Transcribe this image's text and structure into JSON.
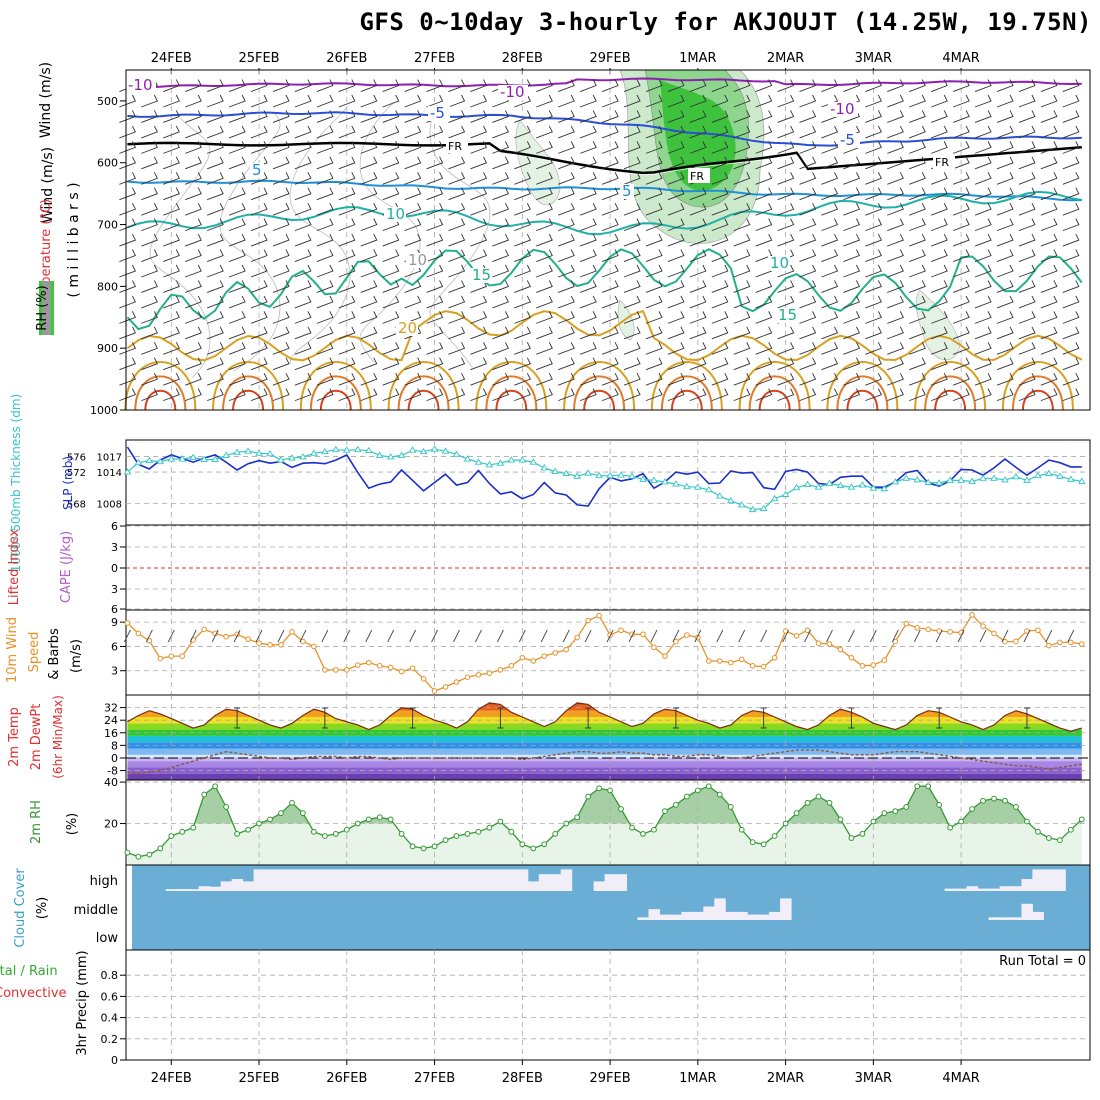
{
  "title": "GFS 0~10day 3-hourly for AKJOUJT (14.25W, 19.75N)",
  "dates": [
    "24FEB",
    "25FEB",
    "26FEB",
    "27FEB",
    "28FEB",
    "29FEB",
    "1MAR",
    "2MAR",
    "3MAR",
    "4MAR"
  ],
  "colors": {
    "rh_fill": "#33cc33",
    "thickness": "#33c6c6",
    "slp": "#1a2fcc",
    "wind": "#e8922a",
    "cloud": "#6aaed6",
    "rh2m": "#339933",
    "label_red": "#e03030",
    "label_green": "#33aa33",
    "label_violet": "#b060c8"
  },
  "chart_data": [
    {
      "type": "contour",
      "name": "upper-air",
      "ylabel_parts": [
        "RH (%)",
        "Temperature (°C)",
        "Wind (m/s)",
        "( m i l l i b a r s )"
      ],
      "yticks": [
        500,
        600,
        700,
        800,
        900,
        1000
      ],
      "ylim": [
        1000,
        450
      ],
      "contour_labels": [
        {
          "text": "-10",
          "color": "#8e1fb0"
        },
        {
          "text": "-10",
          "color": "#8e1fb0"
        },
        {
          "text": "-10",
          "color": "#8e1fb0"
        },
        {
          "text": "-5",
          "color": "#2a4fd6"
        },
        {
          "text": "-5",
          "color": "#2a4fd6"
        },
        {
          "text": "FR",
          "color": "#000000"
        },
        {
          "text": "FR",
          "color": "#000000"
        },
        {
          "text": "FR",
          "color": "#000000"
        },
        {
          "text": "5",
          "color": "#1e90d6"
        },
        {
          "text": "5",
          "color": "#1e90d6"
        },
        {
          "text": "10",
          "color": "#1fb0a8"
        },
        {
          "text": "10",
          "color": "#1fb0a8"
        },
        {
          "text": "10",
          "color": "#999999"
        },
        {
          "text": "15",
          "color": "#22b08a"
        },
        {
          "text": "15",
          "color": "#22b08a"
        },
        {
          "text": "20",
          "color": "#d9a020"
        }
      ]
    },
    {
      "type": "line",
      "name": "thickness-slp",
      "ylabel_left": "1000~500mb Thickness (dm)",
      "ylabel_right": "SLP (mb)",
      "yticks_left": [
        576,
        572,
        568
      ],
      "yticks_right": [
        1017,
        1014,
        1008
      ],
      "ylim_right": [
        1005,
        1019
      ],
      "series": [
        {
          "name": "SLP (mb)",
          "values": [
            1018.8,
            1015.5,
            1014.6,
            1016.3,
            1017.3,
            1016.6,
            1015.9,
            1016.7,
            1017.3,
            1015.9,
            1014.4,
            1015.6,
            1016.2,
            1015.7,
            1016.0,
            1014.9,
            1015.7,
            1015.8,
            1015.6,
            1016.3,
            1017.3,
            1013.9,
            1010.9,
            1011.7,
            1012.1,
            1014.4,
            1012.4,
            1010.4,
            1012.0,
            1013.6,
            1011.5,
            1012.0,
            1014.3,
            1011.8,
            1009.8,
            1010.2,
            1008.9,
            1009.7,
            1012.0,
            1010.0,
            1009.6,
            1007.7,
            1007.5,
            1010.8,
            1013.0,
            1012.3,
            1012.7,
            1013.7,
            1010.9,
            1012.1,
            1014.0,
            1013.6,
            1014.0,
            1011.8,
            1011.9,
            1014.2,
            1013.8,
            1013.9,
            1011.0,
            1010.7,
            1014.1,
            1014.5,
            1014.0,
            1011.8,
            1011.6,
            1013.0,
            1013.2,
            1013.2,
            1011.1,
            1011.1,
            1012.1,
            1013.9,
            1014.3,
            1011.9,
            1011.3,
            1012.3,
            1014.5,
            1014.4,
            1013.4,
            1014.8,
            1016.5,
            1014.9,
            1013.4,
            1014.8,
            1016.3,
            1015.8,
            1015.0,
            1015.0
          ]
        },
        {
          "name": "1000~500mb Thickness (dm)",
          "values": [
            1014.0,
            1015.8,
            1016.2,
            1016.0,
            1016.5,
            1016.5,
            1016.8,
            1016.4,
            1016.4,
            1017.2,
            1017.8,
            1018.0,
            1017.6,
            1017.5,
            1016.3,
            1016.7,
            1016.9,
            1017.6,
            1017.9,
            1018.3,
            1018.2,
            1018.3,
            1018.1,
            1017.2,
            1016.9,
            1017.2,
            1018.2,
            1017.9,
            1018.4,
            1018.0,
            1017.4,
            1016.5,
            1015.9,
            1015.4,
            1015.7,
            1016.3,
            1016.3,
            1015.9,
            1014.8,
            1014.1,
            1013.7,
            1013.2,
            1013.8,
            1013.3,
            1013.3,
            1013.4,
            1013.2,
            1012.6,
            1012.4,
            1012.1,
            1011.7,
            1011.2,
            1011.1,
            1010.6,
            1009.4,
            1008.5,
            1007.7,
            1006.8,
            1007.0,
            1008.9,
            1009.7,
            1011.0,
            1011.6,
            1011.1,
            1011.8,
            1011.4,
            1011.1,
            1011.5,
            1010.9,
            1010.8,
            1012.1,
            1012.8,
            1012.5,
            1012.0,
            1011.9,
            1012.4,
            1012.4,
            1012.2,
            1012.8,
            1012.8,
            1012.5,
            1013.1,
            1012.4,
            1013.3,
            1013.7,
            1013.2,
            1012.6,
            1012.2
          ]
        }
      ]
    },
    {
      "type": "line",
      "name": "cape-li",
      "ylabel_parts": [
        "Lifted Index",
        "CAPE (J/kg)"
      ],
      "yticks": [
        "6",
        "3",
        "0",
        "3",
        "6"
      ],
      "values": []
    },
    {
      "type": "line",
      "name": "wind10m",
      "ylabel_parts": [
        "10m Wind",
        "Speed",
        "& Barbs",
        "(m/s)"
      ],
      "yticks": [
        9,
        6,
        3
      ],
      "ylim": [
        0,
        10.5
      ],
      "series": [
        {
          "name": "10m Wind Speed",
          "values": [
            8.9,
            7.6,
            6.7,
            4.5,
            4.8,
            4.8,
            6.8,
            8.1,
            7.6,
            7.2,
            7.5,
            6.9,
            6.4,
            6.2,
            6.2,
            7.8,
            6.6,
            6.0,
            3.1,
            3.1,
            3.1,
            3.7,
            4.0,
            3.6,
            3.4,
            2.9,
            3.3,
            2.0,
            0.5,
            1.0,
            1.6,
            2.2,
            2.5,
            2.7,
            3.1,
            3.6,
            4.6,
            4.2,
            4.8,
            5.2,
            5.6,
            7.1,
            9.2,
            9.8,
            7.4,
            8.0,
            7.5,
            7.5,
            5.9,
            4.8,
            6.6,
            7.4,
            7.1,
            4.2,
            4.2,
            4.0,
            4.4,
            3.6,
            3.5,
            4.6,
            7.9,
            7.3,
            8.0,
            6.4,
            6.3,
            5.6,
            4.6,
            3.6,
            3.7,
            4.3,
            6.6,
            8.8,
            8.3,
            8.1,
            7.9,
            7.8,
            7.7,
            9.9,
            8.5,
            7.6,
            6.6,
            6.6,
            7.9,
            8.0,
            6.1,
            6.5,
            6.5,
            6.3
          ]
        }
      ]
    },
    {
      "type": "area",
      "name": "temp2m",
      "ylabel_parts": [
        "2m Temp",
        "2m DewPt",
        "(6hr Min/Max)"
      ],
      "yticks": [
        32,
        24,
        16,
        8,
        0,
        -8
      ],
      "ylim": [
        -14,
        40
      ],
      "series": [
        {
          "name": "2m Temp",
          "values": [
            23,
            27,
            30,
            28,
            25,
            22,
            19,
            21,
            27,
            31,
            30,
            27,
            24,
            21,
            19,
            22,
            27,
            31,
            29,
            25,
            23,
            21,
            18,
            21,
            27,
            32,
            31,
            27,
            24,
            22,
            19,
            23,
            31,
            35,
            34,
            29,
            26,
            23,
            20,
            23,
            30,
            35,
            34,
            29,
            26,
            23,
            20,
            22,
            28,
            31,
            30,
            27,
            24,
            22,
            19,
            21,
            27,
            30,
            29,
            26,
            23,
            20,
            18,
            21,
            27,
            31,
            29,
            26,
            22,
            20,
            18,
            21,
            27,
            30,
            29,
            26,
            23,
            21,
            18,
            21,
            27,
            30,
            28,
            25,
            22,
            19,
            17,
            19
          ]
        },
        {
          "name": "2m DewPt",
          "values": [
            -9,
            -10,
            -9,
            -8,
            -6,
            -4,
            -2,
            0,
            2,
            4,
            3,
            2,
            1,
            0,
            0,
            -1,
            0,
            1,
            1,
            1,
            0,
            1,
            1,
            0,
            -1,
            0,
            0,
            0,
            0,
            0,
            0,
            0,
            0,
            0,
            0,
            0,
            -1,
            0,
            1,
            2,
            3,
            4,
            4,
            3,
            3,
            4,
            3,
            3,
            2,
            2,
            1,
            1,
            2,
            2,
            1,
            0,
            0,
            1,
            2,
            3,
            4,
            5,
            5,
            5,
            4,
            3,
            2,
            2,
            2,
            3,
            4,
            4,
            4,
            3,
            2,
            1,
            0,
            -1,
            -2,
            -3,
            -4,
            -5,
            -5,
            -6,
            -7,
            -6,
            -5,
            -4
          ]
        }
      ]
    },
    {
      "type": "area",
      "name": "rh2m",
      "ylabel_parts": [
        "2m RH",
        "(%)"
      ],
      "yticks": [
        40,
        20
      ],
      "ylim": [
        0,
        41
      ],
      "series": [
        {
          "name": "2m RH",
          "values": [
            6,
            4,
            5,
            8,
            14,
            16,
            18,
            34,
            38,
            28,
            15,
            17,
            20,
            22,
            25,
            30,
            25,
            16,
            14,
            15,
            17,
            20,
            22,
            23,
            22,
            15,
            9,
            8,
            9,
            12,
            14,
            15,
            16,
            18,
            21,
            16,
            10,
            8,
            10,
            15,
            20,
            23,
            33,
            37,
            36,
            27,
            18,
            15,
            17,
            26,
            29,
            33,
            36,
            38,
            34,
            28,
            17,
            11,
            10,
            14,
            20,
            25,
            30,
            33,
            30,
            22,
            13,
            15,
            21,
            25,
            26,
            28,
            38,
            38,
            29,
            18,
            21,
            27,
            31,
            32,
            31,
            28,
            21,
            16,
            13,
            12,
            17,
            22
          ]
        }
      ]
    },
    {
      "type": "area",
      "name": "cloud",
      "ylabel_parts": [
        "Cloud Cover",
        "(%)"
      ],
      "yticks": [
        "high",
        "middle",
        "low"
      ],
      "series": [
        {
          "name": "high",
          "values": [
            0,
            0,
            0,
            0,
            8,
            8,
            8,
            20,
            18,
            40,
            50,
            40,
            90,
            90,
            90,
            90,
            90,
            90,
            90,
            90,
            90,
            90,
            90,
            90,
            90,
            90,
            90,
            90,
            90,
            90,
            90,
            90,
            90,
            90,
            90,
            90,
            90,
            40,
            70,
            70,
            90,
            0,
            0,
            40,
            70,
            70,
            0,
            0,
            0,
            0,
            0,
            0,
            0,
            0,
            0,
            0,
            0,
            0,
            0,
            0,
            0,
            0,
            0,
            0,
            0,
            0,
            0,
            0,
            0,
            0,
            0,
            0,
            0,
            0,
            0,
            10,
            10,
            20,
            10,
            10,
            20,
            20,
            50,
            90,
            90,
            90,
            0,
            0
          ]
        },
        {
          "name": "middle",
          "values": [
            0,
            0,
            0,
            0,
            0,
            0,
            0,
            0,
            0,
            0,
            0,
            0,
            0,
            0,
            0,
            0,
            0,
            0,
            0,
            0,
            0,
            0,
            0,
            0,
            0,
            0,
            0,
            0,
            0,
            0,
            0,
            0,
            0,
            0,
            0,
            0,
            0,
            0,
            0,
            0,
            0,
            0,
            0,
            0,
            0,
            0,
            0,
            10,
            40,
            20,
            20,
            30,
            30,
            50,
            80,
            30,
            30,
            20,
            20,
            30,
            80,
            0,
            0,
            0,
            0,
            0,
            0,
            0,
            0,
            0,
            0,
            0,
            0,
            0,
            0,
            0,
            0,
            0,
            0,
            10,
            10,
            10,
            60,
            30,
            0,
            0,
            0,
            0
          ]
        },
        {
          "name": "low",
          "values": [
            0,
            0,
            0,
            0,
            0,
            0,
            0,
            0,
            0,
            0,
            0,
            0,
            0,
            0,
            0,
            0,
            0,
            0,
            0,
            0,
            0,
            0,
            0,
            0,
            0,
            0,
            0,
            0,
            0,
            0,
            0,
            0,
            0,
            0,
            0,
            0,
            0,
            0,
            0,
            0,
            0,
            0,
            0,
            0,
            0,
            0,
            0,
            0,
            0,
            0,
            0,
            0,
            0,
            0,
            0,
            0,
            0,
            0,
            0,
            0,
            0,
            0,
            0,
            0,
            0,
            0,
            0,
            0,
            0,
            0,
            0,
            0,
            0,
            0,
            0,
            0,
            0,
            0,
            0,
            0,
            0,
            0,
            0,
            0,
            0,
            0,
            0,
            0
          ]
        }
      ]
    },
    {
      "type": "bar",
      "name": "precip",
      "ylabel_parts": [
        "Total / Rain",
        "Convective",
        "3hr Precip (mm)"
      ],
      "yticks": [
        0.8,
        0.6,
        0.4,
        0.2,
        0
      ],
      "ylim": [
        0,
        1
      ],
      "run_total": "Run Total = 0",
      "values": []
    }
  ]
}
